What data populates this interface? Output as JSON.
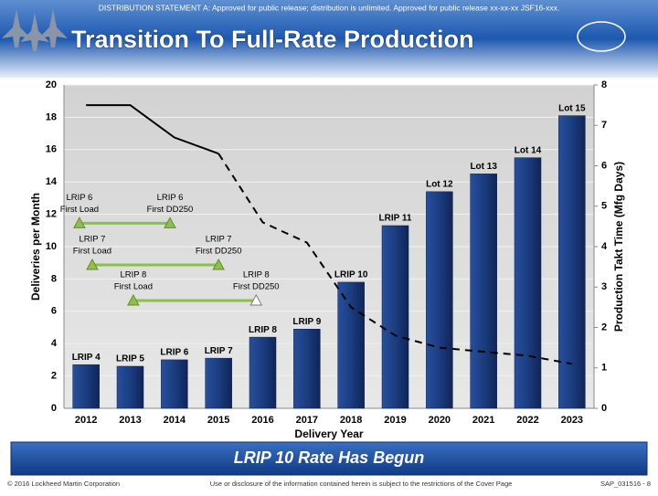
{
  "header": {
    "statement": "DISTRIBUTION STATEMENT A: Approved for public release; distribution is unlimited.  Approved for public release  xx-xx-xx JSF16-xxx."
  },
  "chart_data": {
    "type": "bar",
    "title": "Transition To Full-Rate Production",
    "categories": [
      "2012",
      "2013",
      "2014",
      "2015",
      "2016",
      "2017",
      "2018",
      "2019",
      "2020",
      "2021",
      "2022",
      "2023"
    ],
    "values": [
      2.7,
      2.6,
      3.0,
      3.1,
      4.4,
      4.9,
      7.8,
      11.3,
      13.4,
      14.5,
      15.5,
      18.1
    ],
    "value_labels": [
      "LRIP 4",
      "LRIP 5",
      "LRIP 6",
      "LRIP 7",
      "LRIP 8",
      "LRIP 9",
      "LRIP 10",
      "LRIP 11",
      "Lot 12",
      "Lot 13",
      "Lot 14",
      "Lot 15"
    ],
    "color": "#1f3f82",
    "line": {
      "axis": "y2",
      "color": "#000000",
      "values": [
        7.5,
        7.5,
        6.7,
        6.3,
        4.6,
        4.1,
        2.5,
        1.8,
        1.5,
        1.4,
        1.3,
        1.1
      ]
    },
    "ylim": [
      0,
      20
    ],
    "yticks": [
      0,
      2,
      4,
      6,
      8,
      10,
      12,
      14,
      16,
      18,
      20
    ],
    "y2lim": [
      0,
      8
    ],
    "y2ticks": [
      0,
      1,
      2,
      3,
      4,
      5,
      6,
      7,
      8
    ],
    "xlabel": "Delivery Year",
    "ylabel": "Deliveries per Month",
    "y2label": "Production Takt Time (Mfg Days)",
    "grid": true,
    "milestones": [
      {
        "y": 11.45,
        "start": 2011.85,
        "end": 2013.9,
        "start_label": [
          "LRIP 6",
          "First Load"
        ],
        "end_label": [
          "LRIP 6",
          "First DD250"
        ]
      },
      {
        "y": 8.87,
        "start": 2012.14,
        "end": 2015.0,
        "start_label": [
          "LRIP 7",
          "First Load"
        ],
        "end_label": [
          "LRIP 7",
          "First DD250"
        ]
      },
      {
        "y": 6.67,
        "start": 2013.07,
        "end": 2015.85,
        "start_label": [
          "LRIP 8",
          "First Load"
        ],
        "end_label": [
          "LRIP 8",
          "First DD250"
        ]
      }
    ]
  },
  "banner": "LRIP 10 Rate Has Begun",
  "footer": {
    "left": "© 2016 Lockheed Martin Corporation",
    "center": "Use or disclosure of the information contained herein is subject to the restrictions of the Cover Page",
    "right": "SAP_031516 - 8"
  }
}
